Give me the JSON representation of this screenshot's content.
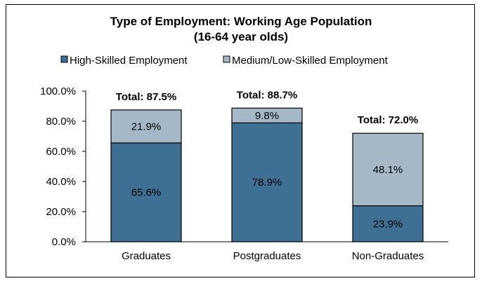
{
  "chart_data": {
    "type": "bar",
    "stacked": true,
    "title": "Type of Employment: Working Age Population",
    "subtitle": "(16-64 year olds)",
    "categories": [
      "Graduates",
      "Postgraduates",
      "Non-Graduates"
    ],
    "series": [
      {
        "name": "High-Skilled Employment",
        "values": [
          65.6,
          78.9,
          23.9
        ],
        "labels": [
          "65.6%",
          "78.9%",
          "23.9%"
        ],
        "color": "#3F7093"
      },
      {
        "name": "Medium/Low-Skilled Employment",
        "values": [
          21.9,
          9.8,
          48.1
        ],
        "labels": [
          "21.9%",
          "9.8%",
          "48.1%"
        ],
        "color": "#A5B8C8"
      }
    ],
    "totals": [
      "Total: 87.5%",
      "Total: 88.7%",
      "Total: 72.0%"
    ],
    "ylim": [
      0,
      100
    ],
    "yticks": [
      "0.0%",
      "20.0%",
      "40.0%",
      "60.0%",
      "80.0%",
      "100.0%"
    ],
    "ytick_values": [
      0,
      20,
      40,
      60,
      80,
      100
    ],
    "grid": false,
    "legend_position": "top"
  }
}
